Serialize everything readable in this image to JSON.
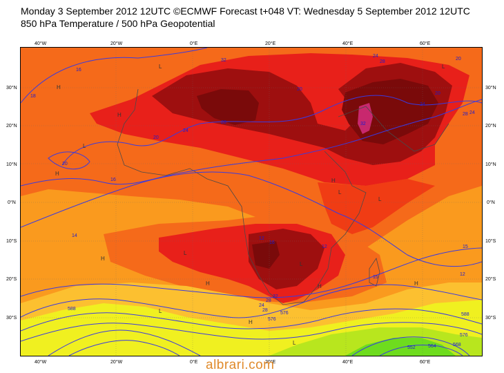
{
  "header": {
    "line1": "Monday 3 September 2012 12UTC ©ECMWF Forecast t+048 VT: Wednesday 5 September 2012 12UTC",
    "line2": "850 hPa Temperature / 500 hPa Geopotential"
  },
  "axes": {
    "lon_labels": [
      "40°W",
      "20°W",
      "0°E",
      "20°E",
      "40°E",
      "60°E"
    ],
    "lat_labels": [
      "30°N",
      "20°N",
      "10°N",
      "0°N",
      "10°S",
      "20°S",
      "30°S"
    ]
  },
  "contour_labels": [
    "16",
    "18",
    "20",
    "24",
    "28",
    "20",
    "24",
    "28",
    "20",
    "20",
    "24",
    "32",
    "32",
    "28",
    "24",
    "20",
    "15",
    "16",
    "14",
    "12",
    "12",
    "15",
    "12",
    "16",
    "24",
    "28",
    "32",
    "28",
    "588",
    "576",
    "588",
    "576",
    "568",
    "552",
    "564",
    "576"
  ],
  "pressure_markers": [
    "H",
    "L",
    "H",
    "L",
    "H",
    "L",
    "H",
    "L",
    "L",
    "H",
    "L",
    "H",
    "L",
    "H",
    "L",
    "H",
    "L",
    "H"
  ],
  "colors": {
    "dark_red": "#7a0a0a",
    "maroon": "#9e0f0f",
    "red": "#e8201a",
    "red_orange": "#f03c14",
    "orange_red": "#f56a1a",
    "orange": "#fa9a1e",
    "light_orange": "#fcc030",
    "yellow": "#f0f020",
    "yellow_green": "#b8e61e",
    "green": "#6edc1e",
    "magenta": "#c8286e",
    "contour": "#3a3ae0",
    "coast": "#4a4a4a"
  },
  "watermark": "albrari.com"
}
